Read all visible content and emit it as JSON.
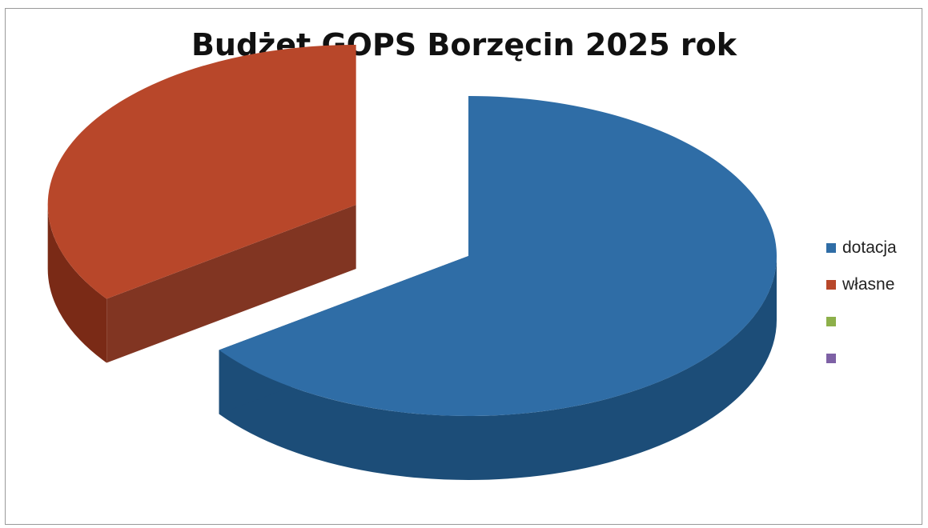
{
  "chart_data": {
    "type": "pie",
    "title": "Budżet GOPS Borzęcin 2025 rok",
    "style": "3d-exploded",
    "categories": [
      "dotacja",
      "własne",
      "",
      ""
    ],
    "values": [
      65,
      35,
      0,
      0
    ],
    "colors": [
      "#2f6da6",
      "#b8472a",
      "#8db04a",
      "#7e61a5"
    ],
    "side_colors": [
      "#1c4d78",
      "#7a2a16",
      "#5f7a30",
      "#553f72"
    ],
    "legend_position": "right"
  }
}
